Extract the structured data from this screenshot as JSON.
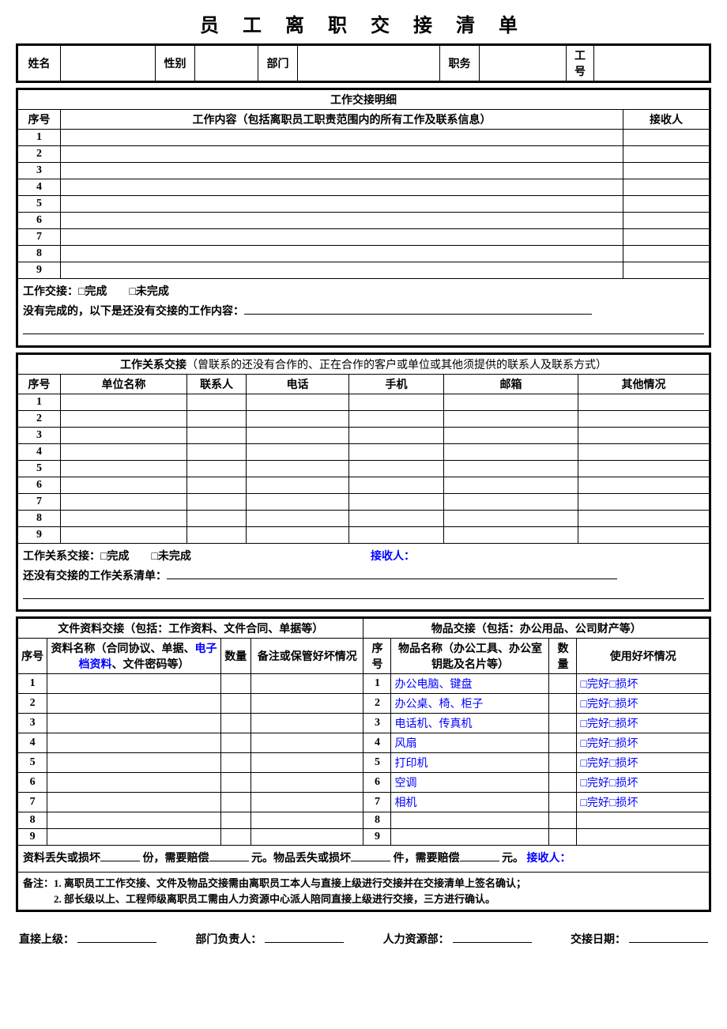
{
  "title": "员 工 离 职 交 接 清 单",
  "header": {
    "name_label": "姓名",
    "gender_label": "性别",
    "dept_label": "部门",
    "position_label": "职务",
    "empno_label": "工号"
  },
  "work_detail": {
    "section_title": "工作交接明细",
    "col_seq": "序号",
    "col_content": "工作内容（包括离职员工职责范围内的所有工作及联系信息）",
    "col_receiver": "接收人",
    "rows": [
      "1",
      "2",
      "3",
      "4",
      "5",
      "6",
      "7",
      "8",
      "9"
    ],
    "status_line": "工作交接：□完成　　□未完成",
    "incomplete_prefix": "没有完成的，以下是还没有交接的工作内容："
  },
  "relations": {
    "section_prefix": "工作关系交接",
    "section_desc": "（曾联系的还没有合作的、正在合作的客户或单位或其他须提供的联系人及联系方式）",
    "col_seq": "序号",
    "col_unit": "单位名称",
    "col_contact": "联系人",
    "col_phone": "电话",
    "col_mobile": "手机",
    "col_email": "邮箱",
    "col_other": "其他情况",
    "rows": [
      "1",
      "2",
      "3",
      "4",
      "5",
      "6",
      "7",
      "8",
      "9"
    ],
    "status_line": "工作关系交接：□完成　　□未完成",
    "receiver_label": "接收人：",
    "pending_prefix": "还没有交接的工作关系清单："
  },
  "docs": {
    "section_title": "文件资料交接（包括：工作资料、文件合同、单据等）",
    "col_seq": "序号",
    "col_name_prefix": "资料名称（合同协议、单据、",
    "col_name_blue": "电子档资料",
    "col_name_suffix": "、文件密码等）",
    "col_qty": "数量",
    "col_remark": "备注或保管好坏情况",
    "rows": [
      "1",
      "2",
      "3",
      "4",
      "5",
      "6",
      "7",
      "8",
      "9"
    ]
  },
  "goods": {
    "section_title": "物品交接（包括：办公用品、公司财产等）",
    "col_seq": "序号",
    "col_name": "物品名称（办公工具、办公室钥匙及名片等）",
    "col_qty": "数量",
    "col_cond": "使用好坏情况",
    "rows": [
      {
        "n": "1",
        "name": "办公电脑、键盘",
        "cond": "□完好□损坏"
      },
      {
        "n": "2",
        "name": "办公桌、椅、柜子",
        "cond": "□完好□损坏"
      },
      {
        "n": "3",
        "name": "电话机、传真机",
        "cond": "□完好□损坏"
      },
      {
        "n": "4",
        "name": "风扇",
        "cond": "□完好□损坏"
      },
      {
        "n": "5",
        "name": "打印机",
        "cond": "□完好□损坏"
      },
      {
        "n": "6",
        "name": "空调",
        "cond": "□完好□损坏"
      },
      {
        "n": "7",
        "name": "相机",
        "cond": "□完好□损坏"
      },
      {
        "n": "8",
        "name": "",
        "cond": ""
      },
      {
        "n": "9",
        "name": "",
        "cond": ""
      }
    ]
  },
  "loss": {
    "t1": "资料丢失或损坏",
    "t2": "份，需要赔偿",
    "t3": "元。物品丢失或损坏",
    "t4": "件，需要赔偿",
    "t5": "元。",
    "receiver": "接收人："
  },
  "notes": {
    "line1": "备注：1. 离职员工工作交接、文件及物品交接需由离职员工本人与直接上级进行交接并在交接清单上签名确认；",
    "line2": "　　　2. 部长级以上、工程师级离职员工需由人力资源中心派人陪同直接上级进行交接，三方进行确认。"
  },
  "signatures": {
    "supervisor": "直接上级：",
    "dept_head": "部门负责人：",
    "hr": "人力资源部：",
    "date": "交接日期："
  }
}
